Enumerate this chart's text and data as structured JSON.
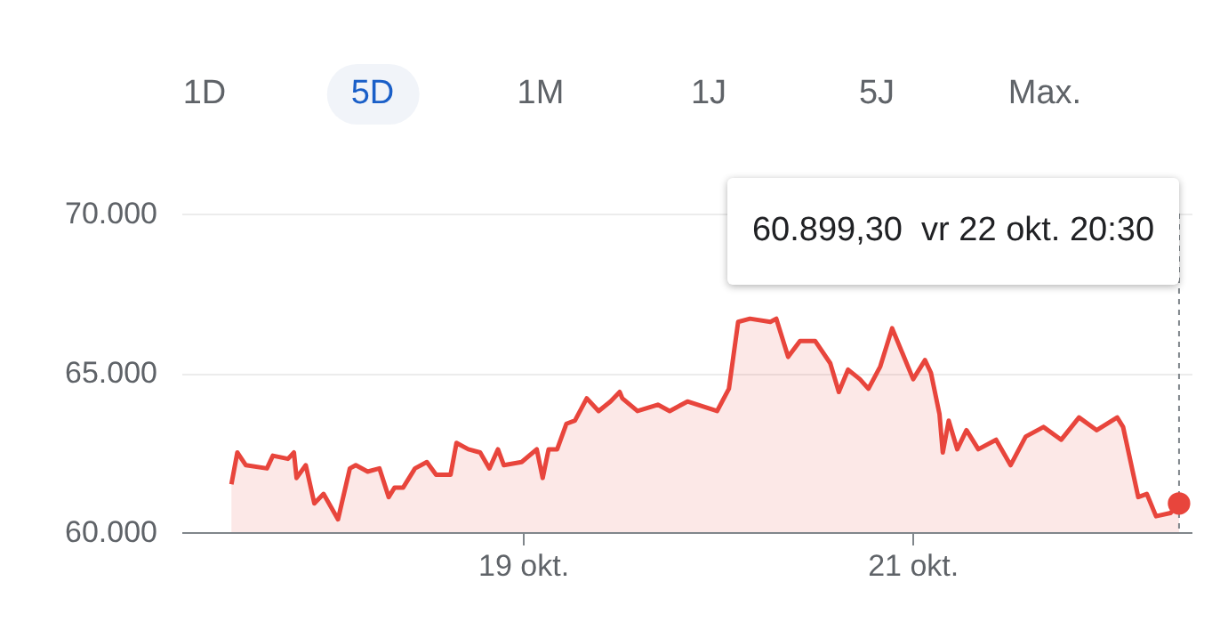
{
  "chart_data": {
    "type": "area",
    "x": [
      "--10-17T20:30",
      "--10-17T21:15",
      "--10-17T22:20",
      "--10-18T01:00",
      "--10-18T01:45",
      "--10-18T03:40",
      "--10-18T04:25",
      "--10-18T04:45",
      "--10-18T05:55",
      "--10-18T07:00",
      "--10-18T08:10",
      "--10-18T10:00",
      "--10-18T11:30",
      "--10-18T12:15",
      "--10-18T13:45",
      "--10-18T15:15",
      "--10-18T16:25",
      "--10-18T17:10",
      "--10-18T18:15",
      "--10-18T19:45",
      "--10-18T21:15",
      "--10-18T22:25",
      "--10-19T00:15",
      "--10-19T01:00",
      "--10-19T02:30",
      "--10-19T04:00",
      "--10-19T05:10",
      "--10-19T06:15",
      "--10-19T07:00",
      "--10-19T09:15",
      "--10-19T11:10",
      "--10-19T11:55",
      "--10-19T12:40",
      "--10-19T13:45",
      "--10-19T14:55",
      "--10-19T16:00",
      "--10-19T17:30",
      "--10-19T19:00",
      "--10-19T20:30",
      "--10-19T21:40",
      "--10-19T22:00",
      "--10-19T23:55",
      "--10-20T02:30",
      "--10-20T04:00",
      "--10-20T06:15",
      "--10-20T10:00",
      "--10-20T11:30",
      "--10-20T12:40",
      "--10-20T14:10",
      "--10-20T16:45",
      "--10-20T17:30",
      "--10-20T19:00",
      "--10-20T20:30",
      "--10-20T22:25",
      "--10-21T00:20",
      "--10-21T01:25",
      "--10-21T02:35",
      "--10-21T04:05",
      "--10-21T05:10",
      "--10-21T06:40",
      "--10-21T08:10",
      "--10-21T09:20",
      "--10-21T10:50",
      "--10-21T12:20",
      "--10-21T13:05",
      "--10-21T14:10",
      "--10-21T14:35",
      "--10-21T15:20",
      "--10-21T16:25",
      "--10-21T17:35",
      "--10-21T19:05",
      "--10-21T21:20",
      "--10-21T23:10",
      "--10-22T01:05",
      "--10-22T03:20",
      "--10-22T05:35",
      "--10-22T07:50",
      "--10-22T10:05",
      "--10-22T12:40",
      "--10-22T13:25",
      "--10-22T15:20",
      "--10-22T16:25",
      "--10-22T17:35",
      "--10-22T19:25",
      "--10-22T20:30"
    ],
    "series": [
      {
        "color": "#e8453c",
        "values": [
          61500,
          62500,
          62100,
          62000,
          62400,
          62300,
          62500,
          61700,
          62100,
          60900,
          61200,
          60400,
          62000,
          62100,
          61900,
          62000,
          61100,
          61400,
          61400,
          62000,
          62200,
          61800,
          61800,
          62800,
          62600,
          62500,
          62000,
          62600,
          62100,
          62200,
          62600,
          61700,
          62600,
          62600,
          63400,
          63500,
          64200,
          63800,
          64100,
          64400,
          64200,
          63800,
          64000,
          63800,
          64100,
          63800,
          64500,
          66600,
          66700,
          66600,
          66700,
          65500,
          66000,
          66000,
          65300,
          64400,
          65100,
          64800,
          64500,
          65200,
          66400,
          65700,
          64800,
          65400,
          65000,
          63700,
          62500,
          63500,
          62600,
          63200,
          62600,
          62900,
          62100,
          63000,
          63300,
          62900,
          63600,
          63200,
          63600,
          63300,
          61100,
          61200,
          60500,
          60600,
          60899.3
        ]
      },
      {
        "type": "scatter",
        "color": "#e8453c",
        "marker": "circle",
        "x": [
          "--10-22T20:30"
        ],
        "values": [
          60899.3
        ]
      }
    ],
    "xlim": [
      "--10-17T14:10",
      "--10-22T22:05"
    ],
    "xticks": [
      {
        "value": "--10-19T09:25",
        "label": "19 okt."
      },
      {
        "value": "--10-21T10:45",
        "label": "21 okt."
      }
    ],
    "ylim": [
      60000,
      70000
    ],
    "yticks": [
      {
        "value": 60000,
        "label": "60.000"
      },
      {
        "value": 65000,
        "label": "65.000"
      },
      {
        "value": 70000,
        "label": "70.000"
      }
    ],
    "grid": "y",
    "ref_lines": [
      {
        "axis": "x",
        "value": "--10-22T20:30",
        "color": "#80868b",
        "line_style": "dashed"
      }
    ],
    "annotations": [
      "1D",
      "5D",
      "1M",
      "1J",
      "5J",
      "Max.",
      "60.899,30  vr 22 okt. 20:30"
    ]
  }
}
